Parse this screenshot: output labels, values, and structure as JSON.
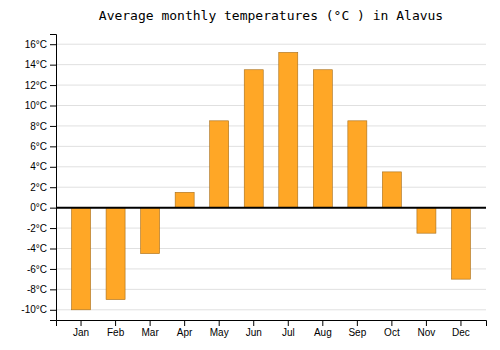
{
  "chart_data": {
    "type": "bar",
    "title": "Average monthly temperatures (°C ) in Alavus",
    "categories": [
      "Jan",
      "Feb",
      "Mar",
      "Apr",
      "May",
      "Jun",
      "Jul",
      "Aug",
      "Sep",
      "Oct",
      "Nov",
      "Dec"
    ],
    "values": [
      -10.0,
      -9.0,
      -4.5,
      1.5,
      8.5,
      13.5,
      15.2,
      13.5,
      8.5,
      3.5,
      -2.5,
      -7.0
    ],
    "color": "#FFA726",
    "ylim": [
      -11,
      17
    ],
    "yticks": [
      {
        "value": -10,
        "label": "-10°C"
      },
      {
        "value": -8,
        "label": "-8°C"
      },
      {
        "value": -6,
        "label": "-6°C"
      },
      {
        "value": -4,
        "label": "-4°C"
      },
      {
        "value": -2,
        "label": "-2°C"
      },
      {
        "value": 0,
        "label": "0°C"
      },
      {
        "value": 2,
        "label": "2°C"
      },
      {
        "value": 4,
        "label": "4°C"
      },
      {
        "value": 6,
        "label": "6°C"
      },
      {
        "value": 8,
        "label": "8°C"
      },
      {
        "value": 10,
        "label": "10°C"
      },
      {
        "value": 12,
        "label": "12°C"
      },
      {
        "value": 14,
        "label": "14°C"
      },
      {
        "value": 16,
        "label": "16°C"
      }
    ],
    "grid": true
  }
}
